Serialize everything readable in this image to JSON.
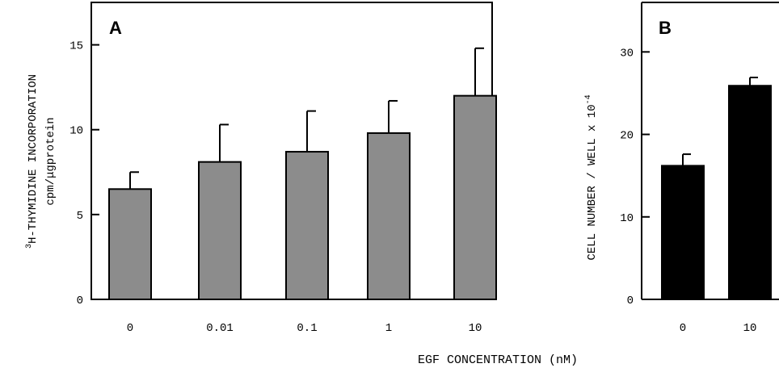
{
  "colors": {
    "panel_a_bar": "#8c8c8c",
    "panel_b_bar": "#000000",
    "axis": "#000000"
  },
  "shared_xlabel": "EGF CONCENTRATION (nM)",
  "chart_data": [
    {
      "type": "bar",
      "panel": "A",
      "categories": [
        "0",
        "0.01",
        "0.1",
        "1",
        "10"
      ],
      "values": [
        6.5,
        8.1,
        8.7,
        9.8,
        12.0
      ],
      "errors": [
        1.0,
        2.2,
        2.4,
        1.9,
        2.8
      ],
      "ylabel_line1": "H-THYMIDINE INCORPORATION",
      "ylabel_superscript": "3",
      "ylabel_line2": "cpm/μgprotein",
      "ylim": [
        0,
        17.5
      ],
      "yticks": [
        0,
        5,
        10,
        15
      ],
      "grid": false
    },
    {
      "type": "bar",
      "panel": "B",
      "categories": [
        "0",
        "10"
      ],
      "values": [
        16.2,
        25.9
      ],
      "errors": [
        1.4,
        1.0
      ],
      "ylabel": "CELL NUMBER / WELL x 10",
      "ylabel_exponent": "-4",
      "ylim": [
        0,
        36
      ],
      "yticks": [
        0,
        10,
        20,
        30
      ],
      "grid": false
    }
  ]
}
